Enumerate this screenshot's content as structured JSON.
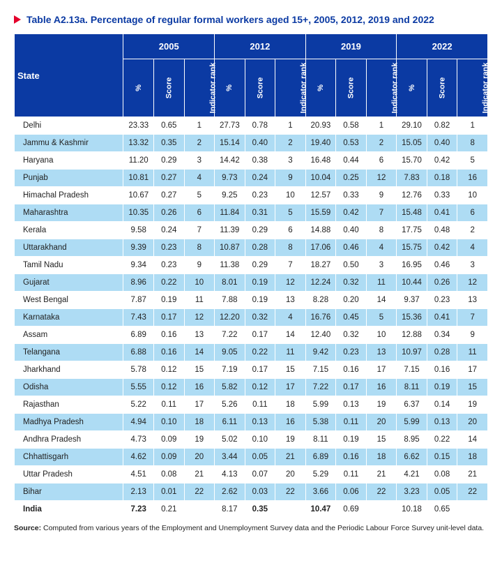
{
  "title": "Table A2.13a. Percentage of regular formal workers aged 15+, 2005, 2012, 2019 and 2022",
  "colors": {
    "arrow": "#e4002b",
    "title": "#0b3aa3",
    "header_bg": "#0b3aa3",
    "stripe_bg": "#aedcf4"
  },
  "columns": {
    "state": "State",
    "pct": "%",
    "score": "Score",
    "rank": "Indicator rank"
  },
  "years": [
    "2005",
    "2012",
    "2019",
    "2022"
  ],
  "rows": [
    {
      "state": "Delhi",
      "y": [
        [
          "23.33",
          "0.65",
          "1"
        ],
        [
          "27.73",
          "0.78",
          "1"
        ],
        [
          "20.93",
          "0.58",
          "1"
        ],
        [
          "29.10",
          "0.82",
          "1"
        ]
      ]
    },
    {
      "state": "Jammu & Kashmir",
      "y": [
        [
          "13.32",
          "0.35",
          "2"
        ],
        [
          "15.14",
          "0.40",
          "2"
        ],
        [
          "19.40",
          "0.53",
          "2"
        ],
        [
          "15.05",
          "0.40",
          "8"
        ]
      ]
    },
    {
      "state": "Haryana",
      "y": [
        [
          "11.20",
          "0.29",
          "3"
        ],
        [
          "14.42",
          "0.38",
          "3"
        ],
        [
          "16.48",
          "0.44",
          "6"
        ],
        [
          "15.70",
          "0.42",
          "5"
        ]
      ]
    },
    {
      "state": "Punjab",
      "y": [
        [
          "10.81",
          "0.27",
          "4"
        ],
        [
          "9.73",
          "0.24",
          "9"
        ],
        [
          "10.04",
          "0.25",
          "12"
        ],
        [
          "7.83",
          "0.18",
          "16"
        ]
      ]
    },
    {
      "state": "Himachal Pradesh",
      "y": [
        [
          "10.67",
          "0.27",
          "5"
        ],
        [
          "9.25",
          "0.23",
          "10"
        ],
        [
          "12.57",
          "0.33",
          "9"
        ],
        [
          "12.76",
          "0.33",
          "10"
        ]
      ]
    },
    {
      "state": "Maharashtra",
      "y": [
        [
          "10.35",
          "0.26",
          "6"
        ],
        [
          "11.84",
          "0.31",
          "5"
        ],
        [
          "15.59",
          "0.42",
          "7"
        ],
        [
          "15.48",
          "0.41",
          "6"
        ]
      ]
    },
    {
      "state": "Kerala",
      "y": [
        [
          "9.58",
          "0.24",
          "7"
        ],
        [
          "11.39",
          "0.29",
          "6"
        ],
        [
          "14.88",
          "0.40",
          "8"
        ],
        [
          "17.75",
          "0.48",
          "2"
        ]
      ]
    },
    {
      "state": "Uttarakhand",
      "y": [
        [
          "9.39",
          "0.23",
          "8"
        ],
        [
          "10.87",
          "0.28",
          "8"
        ],
        [
          "17.06",
          "0.46",
          "4"
        ],
        [
          "15.75",
          "0.42",
          "4"
        ]
      ]
    },
    {
      "state": "Tamil Nadu",
      "y": [
        [
          "9.34",
          "0.23",
          "9"
        ],
        [
          "11.38",
          "0.29",
          "7"
        ],
        [
          "18.27",
          "0.50",
          "3"
        ],
        [
          "16.95",
          "0.46",
          "3"
        ]
      ]
    },
    {
      "state": "Gujarat",
      "y": [
        [
          "8.96",
          "0.22",
          "10"
        ],
        [
          "8.01",
          "0.19",
          "12"
        ],
        [
          "12.24",
          "0.32",
          "11"
        ],
        [
          "10.44",
          "0.26",
          "12"
        ]
      ]
    },
    {
      "state": "West Bengal",
      "y": [
        [
          "7.87",
          "0.19",
          "11"
        ],
        [
          "7.88",
          "0.19",
          "13"
        ],
        [
          "8.28",
          "0.20",
          "14"
        ],
        [
          "9.37",
          "0.23",
          "13"
        ]
      ]
    },
    {
      "state": "Karnataka",
      "y": [
        [
          "7.43",
          "0.17",
          "12"
        ],
        [
          "12.20",
          "0.32",
          "4"
        ],
        [
          "16.76",
          "0.45",
          "5"
        ],
        [
          "15.36",
          "0.41",
          "7"
        ]
      ]
    },
    {
      "state": "Assam",
      "y": [
        [
          "6.89",
          "0.16",
          "13"
        ],
        [
          "7.22",
          "0.17",
          "14"
        ],
        [
          "12.40",
          "0.32",
          "10"
        ],
        [
          "12.88",
          "0.34",
          "9"
        ]
      ]
    },
    {
      "state": "Telangana",
      "y": [
        [
          "6.88",
          "0.16",
          "14"
        ],
        [
          "9.05",
          "0.22",
          "11"
        ],
        [
          "9.42",
          "0.23",
          "13"
        ],
        [
          "10.97",
          "0.28",
          "11"
        ]
      ]
    },
    {
      "state": "Jharkhand",
      "y": [
        [
          "5.78",
          "0.12",
          "15"
        ],
        [
          "7.19",
          "0.17",
          "15"
        ],
        [
          "7.15",
          "0.16",
          "17"
        ],
        [
          "7.15",
          "0.16",
          "17"
        ]
      ]
    },
    {
      "state": "Odisha",
      "y": [
        [
          "5.55",
          "0.12",
          "16"
        ],
        [
          "5.82",
          "0.12",
          "17"
        ],
        [
          "7.22",
          "0.17",
          "16"
        ],
        [
          "8.11",
          "0.19",
          "15"
        ]
      ]
    },
    {
      "state": "Rajasthan",
      "y": [
        [
          "5.22",
          "0.11",
          "17"
        ],
        [
          "5.26",
          "0.11",
          "18"
        ],
        [
          "5.99",
          "0.13",
          "19"
        ],
        [
          "6.37",
          "0.14",
          "19"
        ]
      ]
    },
    {
      "state": "Madhya Pradesh",
      "y": [
        [
          "4.94",
          "0.10",
          "18"
        ],
        [
          "6.11",
          "0.13",
          "16"
        ],
        [
          "5.38",
          "0.11",
          "20"
        ],
        [
          "5.99",
          "0.13",
          "20"
        ]
      ]
    },
    {
      "state": "Andhra Pradesh",
      "y": [
        [
          "4.73",
          "0.09",
          "19"
        ],
        [
          "5.02",
          "0.10",
          "19"
        ],
        [
          "8.11",
          "0.19",
          "15"
        ],
        [
          "8.95",
          "0.22",
          "14"
        ]
      ]
    },
    {
      "state": "Chhattisgarh",
      "y": [
        [
          "4.62",
          "0.09",
          "20"
        ],
        [
          "3.44",
          "0.05",
          "21"
        ],
        [
          "6.89",
          "0.16",
          "18"
        ],
        [
          "6.62",
          "0.15",
          "18"
        ]
      ]
    },
    {
      "state": "Uttar Pradesh",
      "y": [
        [
          "4.51",
          "0.08",
          "21"
        ],
        [
          "4.13",
          "0.07",
          "20"
        ],
        [
          "5.29",
          "0.11",
          "21"
        ],
        [
          "4.21",
          "0.08",
          "21"
        ]
      ]
    },
    {
      "state": "Bihar",
      "y": [
        [
          "2.13",
          "0.01",
          "22"
        ],
        [
          "2.62",
          "0.03",
          "22"
        ],
        [
          "3.66",
          "0.06",
          "22"
        ],
        [
          "3.23",
          "0.05",
          "22"
        ]
      ]
    },
    {
      "state": "India",
      "bold": true,
      "y": [
        [
          "7.23",
          "0.21",
          ""
        ],
        [
          "8.17",
          "0.35",
          ""
        ],
        [
          "10.47",
          "0.69",
          ""
        ],
        [
          "10.18",
          "0.65",
          ""
        ]
      ],
      "boldcells": [
        [
          0,
          0
        ],
        [
          1,
          1
        ],
        [
          2,
          0
        ]
      ]
    }
  ],
  "source_label": "Source:",
  "source_text": " Computed from various years of the Employment and Unemployment Survey data and the Periodic Labour Force Survey unit-level data."
}
